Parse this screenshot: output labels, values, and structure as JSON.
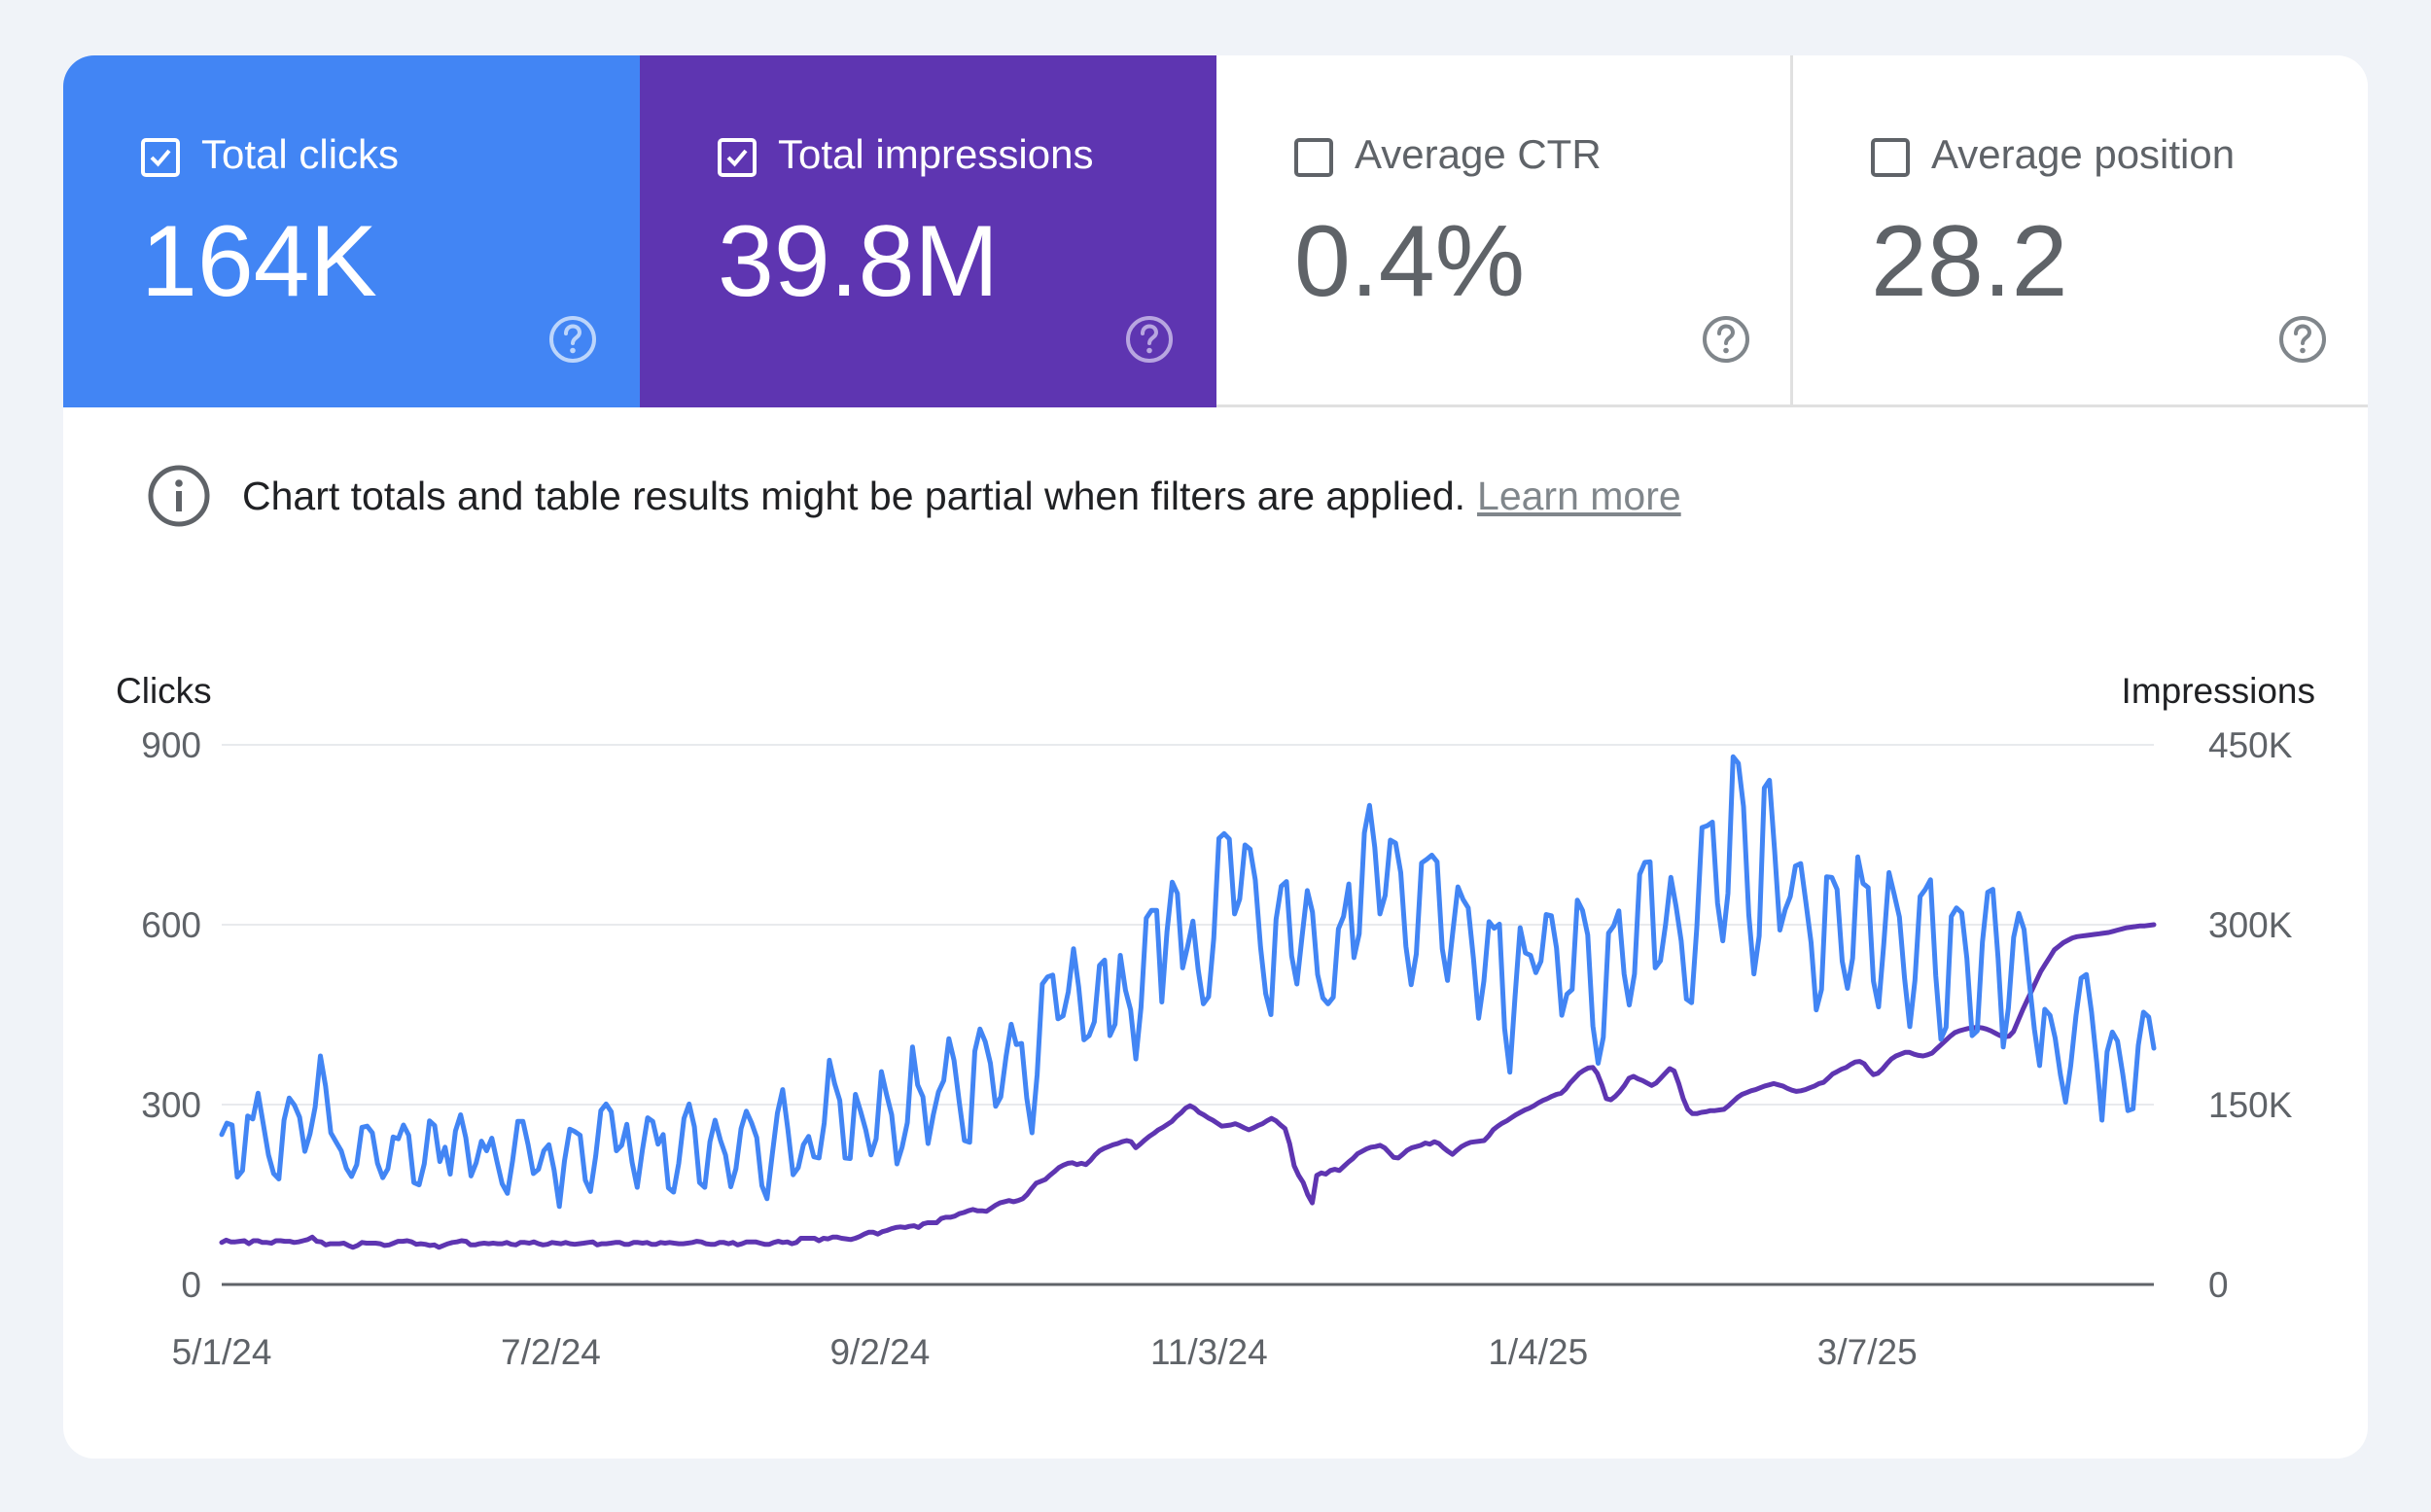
{
  "metrics": {
    "clicks": {
      "label": "Total clicks",
      "value": "164K",
      "checked": true,
      "color": "#4285f4"
    },
    "impressions": {
      "label": "Total impressions",
      "value": "39.8M",
      "checked": true,
      "color": "#5e35b1"
    },
    "ctr": {
      "label": "Average CTR",
      "value": "0.4%",
      "checked": false
    },
    "position": {
      "label": "Average position",
      "value": "28.2",
      "checked": false
    }
  },
  "notice": {
    "text": "Chart totals and table results might be partial when filters are applied.",
    "link": "Learn more"
  },
  "chart_data": {
    "type": "line",
    "x_start": "2024-05-01",
    "x_end": "2025-04-30",
    "x_ticks": [
      "5/1/24",
      "7/2/24",
      "9/2/24",
      "11/3/24",
      "1/4/25",
      "3/7/25"
    ],
    "ylabel_left": "Clicks",
    "ylabel_right": "Impressions",
    "y_left_ticks": [
      "0",
      "300",
      "600",
      "900"
    ],
    "y_right_ticks": [
      "0",
      "150K",
      "300K",
      "450K"
    ],
    "ylim_left": [
      0,
      900
    ],
    "ylim_right": [
      0,
      450000
    ],
    "grid": true,
    "series": [
      {
        "name": "Clicks",
        "axis": "left",
        "color": "#4285f4",
        "values": [
          250,
          269,
          266,
          179,
          190,
          281,
          276,
          319,
          268,
          216,
          185,
          176,
          274,
          311,
          299,
          279,
          222,
          251,
          296,
          381,
          331,
          253,
          238,
          223,
          194,
          180,
          200,
          262,
          264,
          253,
          202,
          178,
          193,
          246,
          243,
          266,
          249,
          170,
          166,
          201,
          273,
          265,
          205,
          229,
          184,
          256,
          283,
          245,
          181,
          203,
          239,
          223,
          244,
          205,
          168,
          152,
          206,
          272,
          272,
          233,
          185,
          192,
          223,
          233,
          191,
          130,
          206,
          259,
          255,
          249,
          174,
          155,
          214,
          290,
          301,
          288,
          223,
          232,
          267,
          204,
          162,
          225,
          278,
          272,
          234,
          250,
          161,
          154,
          202,
          277,
          301,
          263,
          170,
          162,
          238,
          274,
          241,
          216,
          163,
          193,
          260,
          289,
          270,
          245,
          165,
          143,
          217,
          286,
          325,
          259,
          183,
          195,
          233,
          247,
          213,
          211,
          269,
          374,
          335,
          307,
          211,
          210,
          317,
          289,
          258,
          216,
          243,
          355,
          317,
          283,
          201,
          229,
          270,
          396,
          333,
          313,
          235,
          283,
          321,
          340,
          410,
          374,
          304,
          240,
          237,
          389,
          426,
          405,
          369,
          297,
          313,
          380,
          434,
          400,
          402,
          311,
          253,
          350,
          501,
          513,
          516,
          443,
          448,
          488,
          560,
          496,
          408,
          415,
          438,
          532,
          541,
          415,
          434,
          549,
          491,
          458,
          376,
          462,
          611,
          624,
          624,
          471,
          588,
          671,
          652,
          528,
          565,
          606,
          525,
          468,
          480,
          577,
          744,
          752,
          743,
          618,
          643,
          733,
          726,
          675,
          563,
          485,
          450,
          609,
          664,
          672,
          548,
          501,
          580,
          657,
          621,
          517,
          478,
          468,
          479,
          593,
          614,
          668,
          545,
          585,
          753,
          799,
          729,
          618,
          649,
          741,
          736,
          687,
          564,
          500,
          551,
          703,
          709,
          716,
          705,
          560,
          507,
          586,
          663,
          642,
          628,
          543,
          444,
          506,
          605,
          594,
          601,
          427,
          354,
          479,
          595,
          553,
          549,
          520,
          539,
          617,
          615,
          561,
          449,
          484,
          492,
          641,
          624,
          583,
          431,
          369,
          412,
          586,
          598,
          623,
          518,
          466,
          518,
          684,
          704,
          705,
          528,
          540,
          601,
          679,
          631,
          573,
          476,
          470,
          596,
          762,
          765,
          771,
          636,
          573,
          652,
          880,
          869,
          797,
          617,
          518,
          581,
          828,
          841,
          721,
          591,
          625,
          647,
          698,
          702,
          638,
          570,
          458,
          492,
          680,
          679,
          659,
          539,
          494,
          544,
          713,
          669,
          662,
          506,
          463,
          567,
          687,
          651,
          613,
          511,
          430,
          507,
          647,
          659,
          675,
          515,
          409,
          429,
          614,
          628,
          620,
          544,
          415,
          423,
          571,
          654,
          659,
          544,
          396,
          461,
          579,
          619,
          592,
          506,
          426,
          365,
          459,
          449,
          411,
          350,
          304,
          365,
          448,
          511,
          517,
          454,
          371,
          274,
          388,
          421,
          406,
          351,
          290,
          293,
          399,
          454,
          446,
          394
        ]
      },
      {
        "name": "Impressions",
        "axis": "right",
        "color": "#5e35b1",
        "values": [
          35000,
          37000,
          35500,
          35500,
          36000,
          36500,
          34000,
          36500,
          36500,
          35000,
          35000,
          34500,
          36500,
          36500,
          36000,
          36000,
          35000,
          35500,
          36500,
          37500,
          39500,
          36000,
          35500,
          33000,
          34000,
          34000,
          34000,
          34500,
          32500,
          31000,
          32500,
          35000,
          34500,
          34500,
          34500,
          34000,
          32500,
          33000,
          34500,
          36000,
          36000,
          36500,
          35500,
          33500,
          34000,
          33500,
          32500,
          33000,
          31000,
          32500,
          34000,
          35000,
          35500,
          36500,
          36000,
          33000,
          33000,
          34000,
          34500,
          34000,
          34500,
          34000,
          34000,
          35000,
          33500,
          33000,
          35000,
          35000,
          34500,
          35500,
          34000,
          33000,
          33500,
          35000,
          34500,
          34000,
          35000,
          34000,
          33500,
          34000,
          34500,
          35000,
          35500,
          33000,
          34000,
          34000,
          34500,
          35000,
          35000,
          33500,
          33500,
          35000,
          35000,
          34500,
          35000,
          33500,
          33500,
          35000,
          34500,
          35000,
          34500,
          34000,
          34000,
          34500,
          35000,
          36000,
          35500,
          34000,
          33500,
          33500,
          35000,
          35000,
          34000,
          35000,
          33000,
          34000,
          35500,
          35500,
          35500,
          34500,
          33500,
          33500,
          35000,
          36000,
          35000,
          35500,
          34000,
          35000,
          38500,
          38500,
          38500,
          38500,
          36500,
          38500,
          38000,
          39500,
          39500,
          38500,
          38000,
          37500,
          38500,
          40000,
          42000,
          43500,
          43500,
          42000,
          44000,
          45000,
          46500,
          47500,
          48000,
          47500,
          48500,
          49000,
          47500,
          50500,
          51500,
          51500,
          51500,
          55000,
          56000,
          56000,
          57000,
          59000,
          60000,
          61500,
          62500,
          61500,
          61500,
          61000,
          63500,
          66000,
          68000,
          69000,
          70000,
          69000,
          70000,
          71500,
          75000,
          80000,
          84500,
          86000,
          87500,
          91000,
          94000,
          97500,
          99500,
          101000,
          101500,
          100000,
          101000,
          100000,
          103500,
          108000,
          111500,
          113500,
          115000,
          116500,
          117500,
          119000,
          120000,
          119000,
          114000,
          117000,
          120500,
          123500,
          126000,
          129000,
          131000,
          133500,
          136000,
          140000,
          143000,
          147000,
          149000,
          147000,
          143500,
          141500,
          139000,
          137000,
          134500,
          132000,
          132500,
          133000,
          134000,
          132500,
          130500,
          129000,
          130500,
          132500,
          134000,
          136500,
          138500,
          136500,
          133000,
          130000,
          117500,
          99000,
          91000,
          85000,
          75000,
          68000,
          91000,
          93000,
          92000,
          95000,
          96000,
          95000,
          98500,
          102000,
          105000,
          109000,
          111000,
          113000,
          114500,
          115000,
          116000,
          114000,
          110000,
          106000,
          105500,
          108500,
          112000,
          114000,
          115000,
          116000,
          118000,
          117000,
          119000,
          117500,
          114000,
          111000,
          108500,
          112000,
          115000,
          117000,
          118500,
          119000,
          119500,
          120000,
          124000,
          129000,
          132000,
          134500,
          136500,
          139000,
          141500,
          143500,
          145500,
          147000,
          149000,
          151500,
          153500,
          155000,
          157000,
          158500,
          159500,
          163000,
          168000,
          172000,
          176000,
          178500,
          180500,
          181000,
          176000,
          166500,
          155000,
          154000,
          157000,
          161000,
          166000,
          172000,
          173500,
          171500,
          170000,
          168000,
          166000,
          168000,
          172000,
          176000,
          180000,
          178000,
          167500,
          155000,
          146000,
          142500,
          142500,
          143500,
          144000,
          145000,
          145000,
          145500,
          146000,
          149000,
          152500,
          156000,
          158500,
          160000,
          161500,
          162500,
          164000,
          165500,
          166500,
          167500,
          166500,
          165500,
          163500,
          162000,
          161000,
          161500,
          162500,
          164000,
          165500,
          167500,
          168500,
          172000,
          175500,
          177500,
          179500,
          181000,
          183500,
          185500,
          186000,
          184000,
          179000,
          175000,
          176000,
          179500,
          184000,
          188000,
          190500,
          192000,
          193500,
          193500,
          192000,
          191000,
          190500,
          191500,
          193000,
          196500,
          200000,
          203500,
          207000,
          210000,
          211500,
          212500,
          213500,
          214000,
          214500,
          214000,
          213000,
          211500,
          209500,
          207500,
          206500,
          207000,
          211000,
          220000,
          229000,
          237000,
          245000,
          253000,
          261000,
          267000,
          273000,
          279000,
          282000,
          285000,
          287000,
          289000,
          290000,
          290500,
          291000,
          291500,
          292000,
          292500,
          293000,
          293500,
          294500,
          295500,
          296500,
          297500,
          298000,
          298500,
          299000,
          299000,
          299500,
          300000
        ]
      }
    ]
  }
}
